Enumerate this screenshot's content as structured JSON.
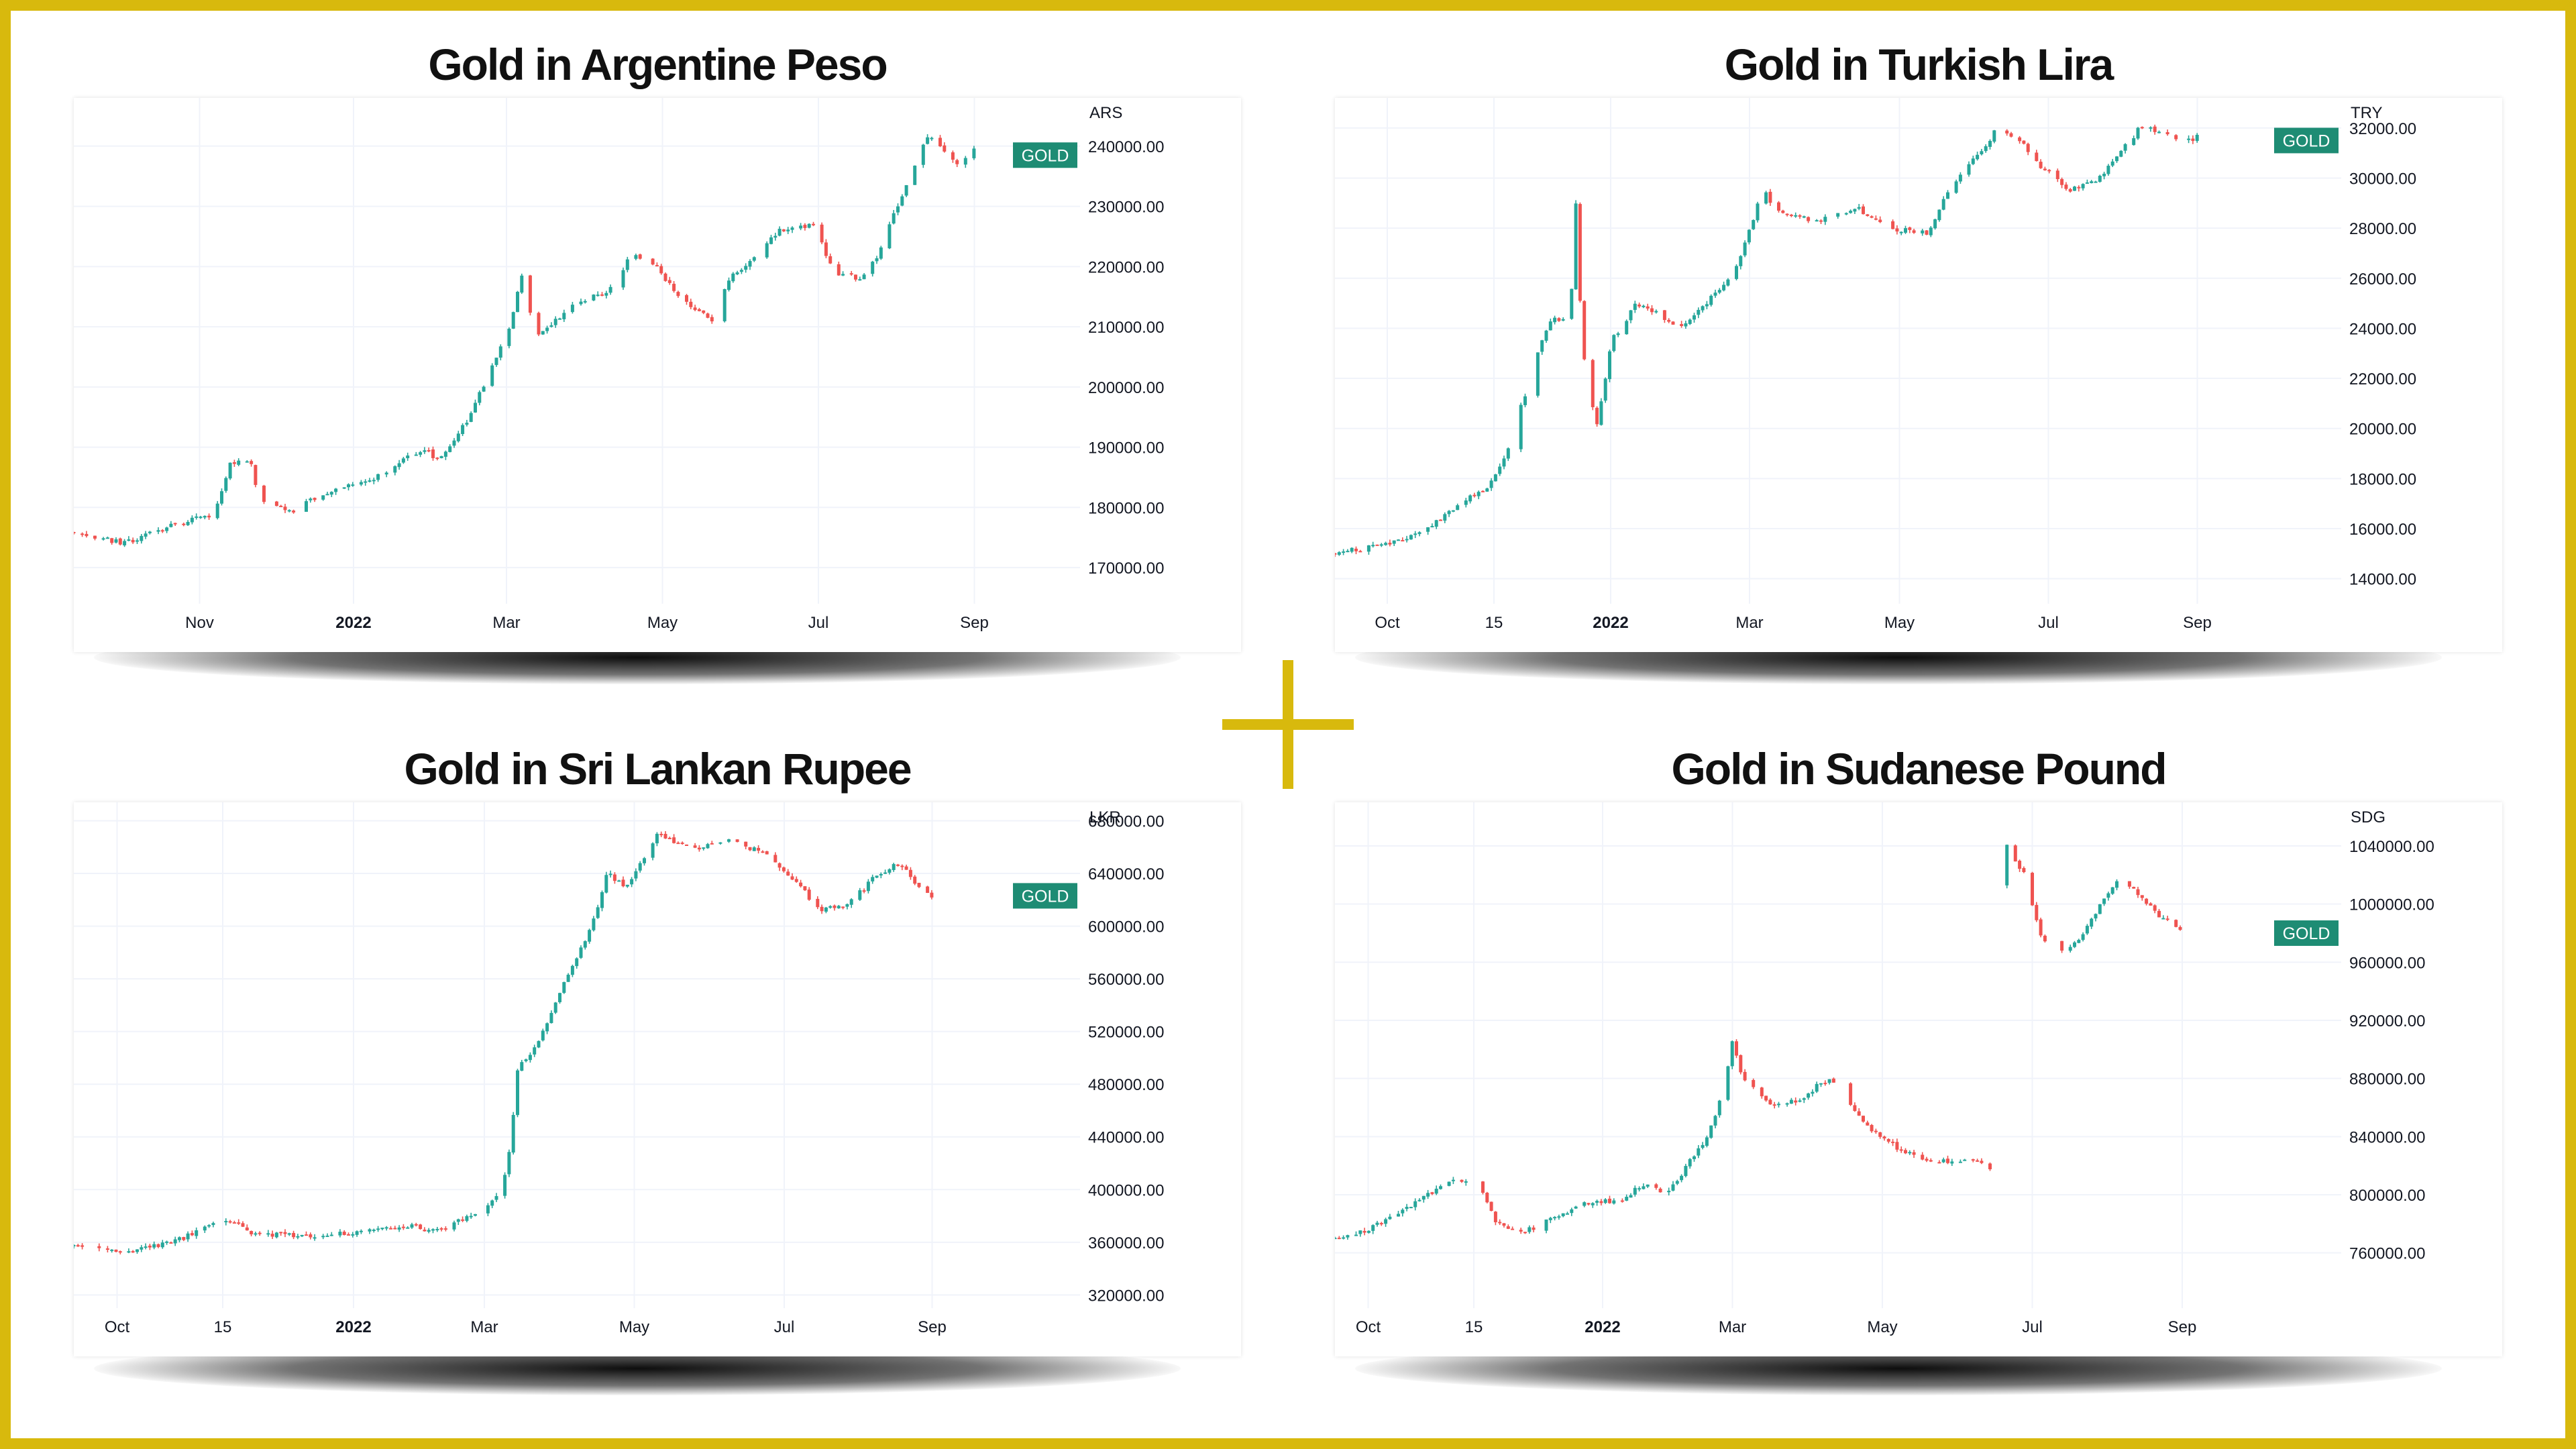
{
  "colors": {
    "frame": "#d8b90d",
    "up": "#26a69a",
    "down": "#ef5350",
    "badge": "#1e8c74",
    "grid": "#f0f3fa"
  },
  "chart_data": [
    {
      "type": "candlestick",
      "title": "Gold in Argentine Peso",
      "unit": "ARS",
      "series_label": "GOLD",
      "last_value": 238500,
      "ylim": [
        164000,
        248000
      ],
      "y_ticks": [
        170000,
        180000,
        190000,
        200000,
        210000,
        220000,
        230000,
        240000
      ],
      "y_tick_labels": [
        "170000.00",
        "180000.00",
        "190000.00",
        "200000.00",
        "210000.00",
        "220000.00",
        "230000.00",
        "240000.00"
      ],
      "x_ticks": [
        {
          "label": "Nov",
          "pos": 0.125,
          "bold": false
        },
        {
          "label": "2022",
          "pos": 0.278,
          "bold": true
        },
        {
          "label": "Mar",
          "pos": 0.43,
          "bold": false
        },
        {
          "label": "May",
          "pos": 0.585,
          "bold": false
        },
        {
          "label": "Jul",
          "pos": 0.74,
          "bold": false
        },
        {
          "label": "Sep",
          "pos": 0.895,
          "bold": false
        }
      ],
      "anchors": [
        [
          0.0,
          176000
        ],
        [
          0.05,
          174000
        ],
        [
          0.09,
          176500
        ],
        [
          0.14,
          179000
        ],
        [
          0.155,
          187000
        ],
        [
          0.175,
          188000
        ],
        [
          0.185,
          181000
        ],
        [
          0.22,
          179500
        ],
        [
          0.24,
          181500
        ],
        [
          0.3,
          185000
        ],
        [
          0.35,
          190000
        ],
        [
          0.36,
          187500
        ],
        [
          0.39,
          194000
        ],
        [
          0.42,
          205000
        ],
        [
          0.435,
          211000
        ],
        [
          0.445,
          219000
        ],
        [
          0.46,
          208000
        ],
        [
          0.49,
          213000
        ],
        [
          0.53,
          216000
        ],
        [
          0.555,
          222000
        ],
        [
          0.58,
          220000
        ],
        [
          0.6,
          215000
        ],
        [
          0.635,
          211000
        ],
        [
          0.65,
          218000
        ],
        [
          0.675,
          221000
        ],
        [
          0.7,
          226000
        ],
        [
          0.735,
          227000
        ],
        [
          0.755,
          219000
        ],
        [
          0.78,
          218000
        ],
        [
          0.8,
          222000
        ],
        [
          0.83,
          235000
        ],
        [
          0.85,
          242000
        ],
        [
          0.865,
          239000
        ],
        [
          0.88,
          237000
        ],
        [
          0.895,
          240000
        ]
      ],
      "x_end": 0.895,
      "gaps": []
    },
    {
      "type": "candlestick",
      "title": "Gold in Turkish Lira",
      "unit": "TRY",
      "series_label": "GOLD",
      "last_value": 31500,
      "ylim": [
        13000,
        33200
      ],
      "y_ticks": [
        14000,
        16000,
        18000,
        20000,
        22000,
        24000,
        26000,
        28000,
        30000,
        32000
      ],
      "y_tick_labels": [
        "14000.00",
        "16000.00",
        "18000.00",
        "20000.00",
        "22000.00",
        "24000.00",
        "26000.00",
        "28000.00",
        "30000.00",
        "32000.00"
      ],
      "x_ticks": [
        {
          "label": "Oct",
          "pos": 0.052,
          "bold": false
        },
        {
          "label": "15",
          "pos": 0.158,
          "bold": false
        },
        {
          "label": "2022",
          "pos": 0.274,
          "bold": true
        },
        {
          "label": "Mar",
          "pos": 0.412,
          "bold": false
        },
        {
          "label": "May",
          "pos": 0.561,
          "bold": false
        },
        {
          "label": "Jul",
          "pos": 0.709,
          "bold": false
        },
        {
          "label": "Sep",
          "pos": 0.857,
          "bold": false
        }
      ],
      "anchors": [
        [
          0.0,
          15000
        ],
        [
          0.05,
          15400
        ],
        [
          0.08,
          15700
        ],
        [
          0.1,
          16300
        ],
        [
          0.13,
          17200
        ],
        [
          0.15,
          17600
        ],
        [
          0.17,
          19000
        ],
        [
          0.19,
          21500
        ],
        [
          0.2,
          23000
        ],
        [
          0.215,
          24300
        ],
        [
          0.23,
          24500
        ],
        [
          0.235,
          25500
        ],
        [
          0.24,
          29500
        ],
        [
          0.245,
          23500
        ],
        [
          0.255,
          21000
        ],
        [
          0.26,
          20000
        ],
        [
          0.275,
          23500
        ],
        [
          0.3,
          25000
        ],
        [
          0.32,
          24600
        ],
        [
          0.345,
          24000
        ],
        [
          0.37,
          25000
        ],
        [
          0.4,
          26500
        ],
        [
          0.425,
          29500
        ],
        [
          0.445,
          28500
        ],
        [
          0.48,
          28300
        ],
        [
          0.52,
          28800
        ],
        [
          0.55,
          28000
        ],
        [
          0.59,
          27800
        ],
        [
          0.61,
          29500
        ],
        [
          0.63,
          30500
        ],
        [
          0.655,
          31800
        ],
        [
          0.68,
          31600
        ],
        [
          0.7,
          30500
        ],
        [
          0.73,
          29500
        ],
        [
          0.76,
          30000
        ],
        [
          0.78,
          31000
        ],
        [
          0.8,
          32000
        ],
        [
          0.83,
          31800
        ],
        [
          0.845,
          31400
        ],
        [
          0.857,
          31700
        ]
      ],
      "x_end": 0.857,
      "gaps": []
    },
    {
      "type": "candlestick",
      "title": "Gold in Sri Lankan Rupee",
      "unit": "LKR",
      "series_label": "GOLD",
      "last_value": 623000,
      "ylim": [
        310000,
        694000
      ],
      "y_ticks": [
        320000,
        360000,
        400000,
        440000,
        480000,
        520000,
        560000,
        600000,
        640000,
        680000
      ],
      "y_tick_labels": [
        "320000.00",
        "360000.00",
        "400000.00",
        "440000.00",
        "480000.00",
        "520000.00",
        "560000.00",
        "600000.00",
        "640000.00",
        "680000.00"
      ],
      "x_ticks": [
        {
          "label": "Oct",
          "pos": 0.043,
          "bold": false
        },
        {
          "label": "15",
          "pos": 0.148,
          "bold": false
        },
        {
          "label": "2022",
          "pos": 0.278,
          "bold": true
        },
        {
          "label": "Mar",
          "pos": 0.408,
          "bold": false
        },
        {
          "label": "May",
          "pos": 0.557,
          "bold": false
        },
        {
          "label": "Jul",
          "pos": 0.706,
          "bold": false
        },
        {
          "label": "Sep",
          "pos": 0.853,
          "bold": false
        }
      ],
      "anchors": [
        [
          0.0,
          358000
        ],
        [
          0.04,
          352000
        ],
        [
          0.1,
          360000
        ],
        [
          0.13,
          372000
        ],
        [
          0.16,
          376000
        ],
        [
          0.18,
          366000
        ],
        [
          0.24,
          365000
        ],
        [
          0.3,
          370000
        ],
        [
          0.34,
          372000
        ],
        [
          0.36,
          368000
        ],
        [
          0.4,
          382000
        ],
        [
          0.42,
          395000
        ],
        [
          0.43,
          412000
        ],
        [
          0.435,
          440000
        ],
        [
          0.44,
          490000
        ],
        [
          0.46,
          510000
        ],
        [
          0.48,
          545000
        ],
        [
          0.5,
          575000
        ],
        [
          0.52,
          610000
        ],
        [
          0.53,
          640000
        ],
        [
          0.55,
          630000
        ],
        [
          0.57,
          655000
        ],
        [
          0.58,
          670000
        ],
        [
          0.62,
          658000
        ],
        [
          0.65,
          665000
        ],
        [
          0.69,
          655000
        ],
        [
          0.72,
          632000
        ],
        [
          0.74,
          612000
        ],
        [
          0.77,
          617000
        ],
        [
          0.8,
          640000
        ],
        [
          0.82,
          648000
        ],
        [
          0.84,
          630000
        ],
        [
          0.853,
          623000
        ]
      ],
      "x_end": 0.853,
      "gaps": []
    },
    {
      "type": "candlestick",
      "title": "Gold in Sudanese Pound",
      "unit": "SDG",
      "series_label": "GOLD",
      "last_value": 980000,
      "ylim": [
        722000,
        1070000
      ],
      "y_ticks": [
        760000,
        800000,
        840000,
        880000,
        920000,
        960000,
        1000000,
        1040000
      ],
      "y_tick_labels": [
        "760000.00",
        "800000.00",
        "840000.00",
        "880000.00",
        "920000.00",
        "960000.00",
        "1000000.00",
        "1040000.00"
      ],
      "x_ticks": [
        {
          "label": "Oct",
          "pos": 0.033,
          "bold": false
        },
        {
          "label": "15",
          "pos": 0.138,
          "bold": false
        },
        {
          "label": "2022",
          "pos": 0.266,
          "bold": true
        },
        {
          "label": "Mar",
          "pos": 0.395,
          "bold": false
        },
        {
          "label": "May",
          "pos": 0.544,
          "bold": false
        },
        {
          "label": "Jul",
          "pos": 0.693,
          "bold": false
        },
        {
          "label": "Sep",
          "pos": 0.842,
          "bold": false
        }
      ],
      "anchors": [
        [
          0.0,
          770000
        ],
        [
          0.03,
          775000
        ],
        [
          0.06,
          785000
        ],
        [
          0.09,
          800000
        ],
        [
          0.12,
          810000
        ],
        [
          0.14,
          812000
        ],
        [
          0.16,
          780000
        ],
        [
          0.19,
          775000
        ],
        [
          0.22,
          785000
        ],
        [
          0.25,
          795000
        ],
        [
          0.28,
          795000
        ],
        [
          0.31,
          808000
        ],
        [
          0.33,
          800000
        ],
        [
          0.35,
          820000
        ],
        [
          0.37,
          840000
        ],
        [
          0.385,
          870000
        ],
        [
          0.395,
          905000
        ],
        [
          0.405,
          880000
        ],
        [
          0.43,
          862000
        ],
        [
          0.46,
          865000
        ],
        [
          0.49,
          880000
        ],
        [
          0.51,
          865000
        ],
        [
          0.53,
          845000
        ],
        [
          0.56,
          832000
        ],
        [
          0.59,
          822000
        ],
        [
          0.63,
          825000
        ],
        [
          0.655,
          818000
        ],
        [
          0.665,
          1045000
        ],
        [
          0.685,
          1020000
        ],
        [
          0.7,
          980000
        ],
        [
          0.72,
          965000
        ],
        [
          0.74,
          975000
        ],
        [
          0.76,
          1000000
        ],
        [
          0.78,
          1020000
        ],
        [
          0.8,
          1005000
        ],
        [
          0.82,
          992000
        ],
        [
          0.842,
          980000
        ]
      ],
      "x_end": 0.842,
      "gaps": [
        [
          0.655,
          0.665
        ]
      ]
    }
  ]
}
